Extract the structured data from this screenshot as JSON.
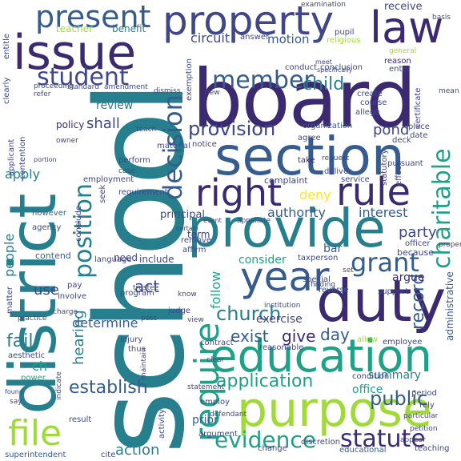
{
  "palette": {
    "dark_purple": "#3b2a70",
    "indigo": "#3f4788",
    "blue": "#365c8d",
    "teal": "#277f8e",
    "sea_green": "#1fa187",
    "green": "#4ac16d",
    "lime": "#a0da39",
    "yellow": "#fde725"
  },
  "words": [
    "school",
    "board",
    "district",
    "property",
    "law",
    "issue",
    "duty",
    "section",
    "provide",
    "education",
    "purpose",
    "rule",
    "right",
    "year",
    "require",
    "present",
    "decision",
    "member",
    "charitable",
    "student",
    "grant",
    "file",
    "statute",
    "evidence",
    "church",
    "application",
    "position",
    "record",
    "establish",
    "public",
    "provision",
    "child",
    "day",
    "summary",
    "give",
    "exist",
    "fail",
    "act",
    "action",
    "use",
    "people",
    "hearing",
    "determine",
    "apply",
    "shall",
    "pond",
    "party",
    "interest",
    "authority",
    "deny",
    "circuit",
    "motion",
    "teacher",
    "benefit",
    "review",
    "policy",
    "consider",
    "follow",
    "principal",
    "argue",
    "exercise",
    "include",
    "office",
    "prior",
    "need",
    "term",
    "contend",
    "receive",
    "pupil",
    "religious",
    "general",
    "reason",
    "enter",
    "certificate",
    "course",
    "create",
    "allege",
    "organization",
    "place",
    "date",
    "deck",
    "take",
    "complaint",
    "deliver",
    "service",
    "pursuant",
    "administrative",
    "because",
    "officer",
    "support",
    "employee",
    "allow",
    "reverse",
    "special",
    "person",
    "tax",
    "affirm",
    "remove",
    "language",
    "employment",
    "agency",
    "however",
    "matter",
    "practice",
    "aesthetic",
    "power",
    "superintendent",
    "cite",
    "result",
    "injury",
    "judge",
    "pay",
    "involve",
    "program",
    "thus",
    "contract",
    "reasonable",
    "condition",
    "period",
    "educational",
    "discretion",
    "change",
    "argument",
    "activity",
    "employ",
    "statement",
    "rely",
    "teaching",
    "answer",
    "conduct",
    "conclusion",
    "exemption",
    "material",
    "notice",
    "perform",
    "requirement",
    "seek",
    "conclude",
    "agree",
    "request",
    "statutory",
    "effect",
    "clearly",
    "entitle",
    "basis",
    "examination",
    "mean",
    "proper",
    "petition",
    "appear",
    "particular",
    "applicant",
    "contention",
    "owner",
    "refer",
    "standard",
    "amendment",
    "proceeding",
    "dismiss",
    "teach",
    "new",
    "case",
    "finding",
    "appellate",
    "trustee",
    "know",
    "set",
    "institution",
    "pass",
    "charge",
    "view",
    "indicate",
    "maintain",
    "clear",
    "defendant",
    "say",
    "ch",
    "specifically",
    "meet",
    "bar",
    "found",
    "portion",
    "event",
    "certain"
  ]
}
